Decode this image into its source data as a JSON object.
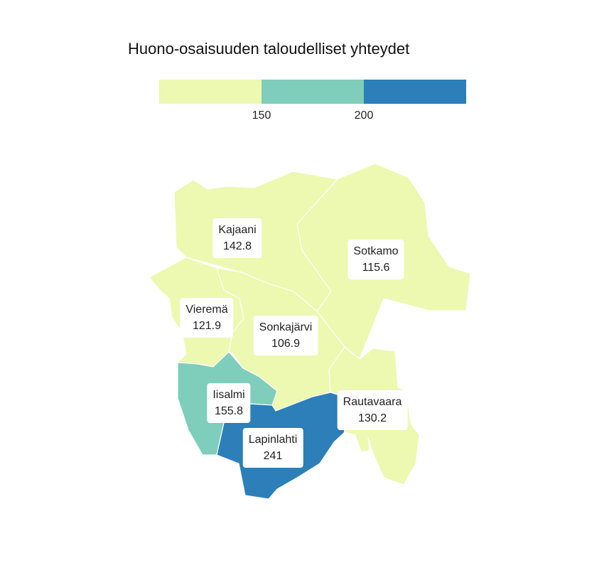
{
  "title": "Huono-osaisuuden taloudelliset yhteydet",
  "legend": {
    "colors": [
      "#edf8b1",
      "#7fcdbb",
      "#2c7fb8"
    ],
    "ticks": [
      "150",
      "200"
    ]
  },
  "regions": [
    {
      "name": "Kajaani",
      "value": "142.8",
      "color": "#edf8b1"
    },
    {
      "name": "Sotkamo",
      "value": "115.6",
      "color": "#edf8b1"
    },
    {
      "name": "Vieremä",
      "value": "121.9",
      "color": "#edf8b1"
    },
    {
      "name": "Sonkajärvi",
      "value": "106.9",
      "color": "#edf8b1"
    },
    {
      "name": "Iisalmi",
      "value": "155.8",
      "color": "#7fcdbb"
    },
    {
      "name": "Rautavaara",
      "value": "130.2",
      "color": "#edf8b1"
    },
    {
      "name": "Lapinlahti",
      "value": "241",
      "color": "#2c7fb8"
    }
  ]
}
